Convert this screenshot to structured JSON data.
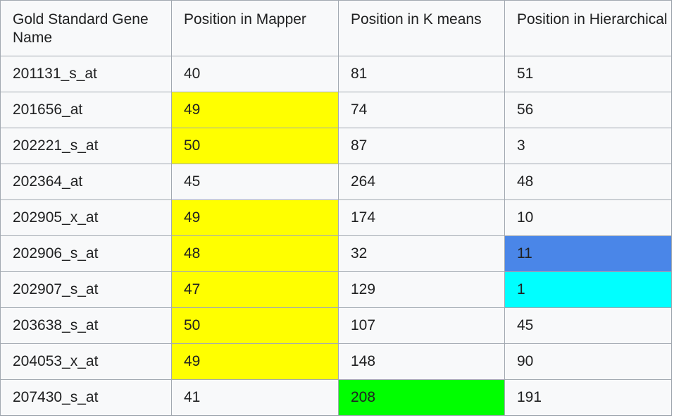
{
  "table": {
    "headers": [
      "Gold Standard Gene Name",
      "Position in Mapper",
      "Position in K means",
      "Position in Hierarchical"
    ],
    "rows": [
      {
        "gene": "201131_s_at",
        "mapper": "40",
        "kmeans": "81",
        "hierarchical": "51"
      },
      {
        "gene": "201656_at",
        "mapper": "49",
        "kmeans": "74",
        "hierarchical": "56"
      },
      {
        "gene": "202221_s_at",
        "mapper": "50",
        "kmeans": "87",
        "hierarchical": "3"
      },
      {
        "gene": "202364_at",
        "mapper": "45",
        "kmeans": "264",
        "hierarchical": "48"
      },
      {
        "gene": "202905_x_at",
        "mapper": "49",
        "kmeans": "174",
        "hierarchical": "10"
      },
      {
        "gene": "202906_s_at",
        "mapper": "48",
        "kmeans": "32",
        "hierarchical": "11"
      },
      {
        "gene": "202907_s_at",
        "mapper": "47",
        "kmeans": "129",
        "hierarchical": "1"
      },
      {
        "gene": "203638_s_at",
        "mapper": "50",
        "kmeans": "107",
        "hierarchical": "45"
      },
      {
        "gene": "204053_x_at",
        "mapper": "49",
        "kmeans": "148",
        "hierarchical": "90"
      },
      {
        "gene": "207430_s_at",
        "mapper": "41",
        "kmeans": "208",
        "hierarchical": "191"
      }
    ]
  },
  "colors": {
    "yellow_highlight": "#ffff00",
    "blue_highlight": "#4a86e8",
    "cyan_highlight": "#00ffff",
    "green_highlight": "#00ff00",
    "cell_background": "#f8f9fa",
    "border": "#a2a9b1",
    "text": "#202122"
  }
}
